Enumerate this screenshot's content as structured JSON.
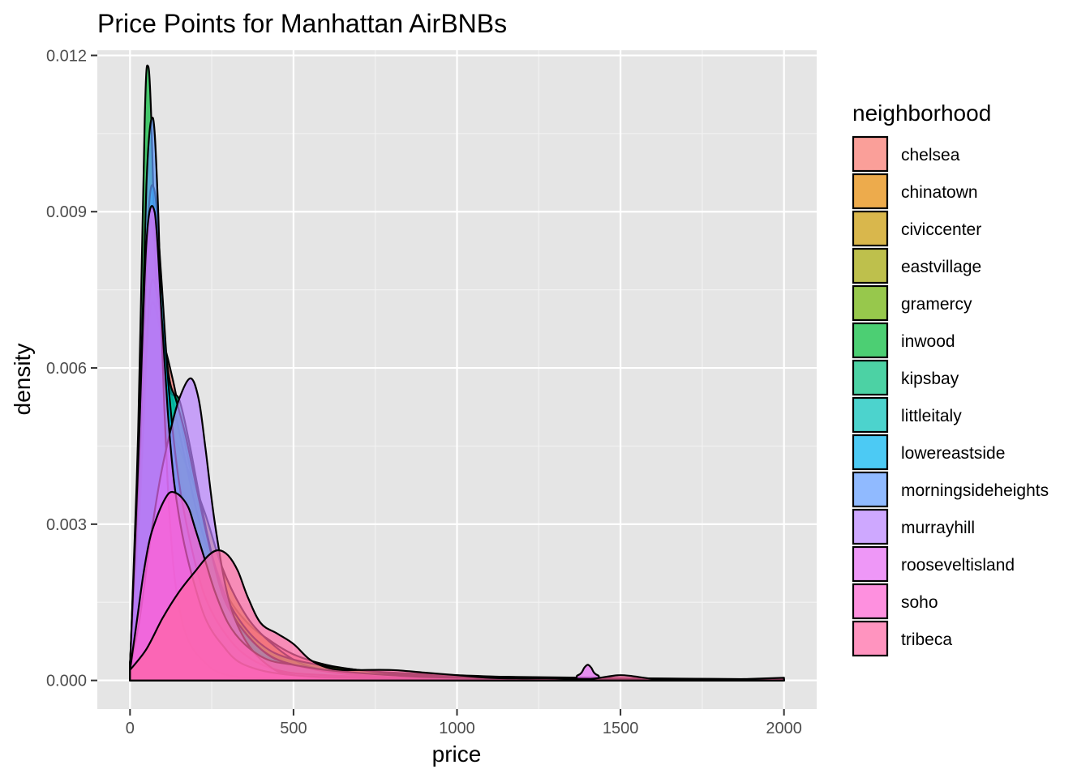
{
  "chart_data": {
    "type": "area",
    "subtype": "density",
    "title": "Price Points for Manhattan AirBNBs",
    "xlabel": "price",
    "ylabel": "density",
    "xlim": [
      -100,
      2100
    ],
    "ylim": [
      -0.00055,
      0.0121
    ],
    "x_ticks": [
      {
        "value": 0,
        "label": "0"
      },
      {
        "value": 500,
        "label": "500"
      },
      {
        "value": 1000,
        "label": "1000"
      },
      {
        "value": 1500,
        "label": "1500"
      },
      {
        "value": 2000,
        "label": "2000"
      }
    ],
    "y_ticks": [
      {
        "value": 0,
        "label": "0.000"
      },
      {
        "value": 0.003,
        "label": "0.003"
      },
      {
        "value": 0.006,
        "label": "0.006"
      },
      {
        "value": 0.009,
        "label": "0.009"
      },
      {
        "value": 0.012,
        "label": "0.012"
      }
    ],
    "grid": true,
    "background": "#e5e5e5",
    "fill_opacity": 0.7,
    "legend": {
      "title": "neighborhood",
      "position": "right"
    },
    "series": [
      {
        "name": "chelsea",
        "color": "#F8766D",
        "x": [
          0,
          30,
          60,
          90,
          130,
          170,
          210,
          250,
          300,
          360,
          420,
          500,
          600,
          700,
          800,
          1000,
          1200,
          1500,
          2000
        ],
        "y": [
          0.0002,
          0.0025,
          0.0058,
          0.0066,
          0.0058,
          0.0045,
          0.0033,
          0.0024,
          0.0016,
          0.0011,
          0.0008,
          0.0005,
          0.0003,
          0.0002,
          0.00015,
          0.0001,
          6e-05,
          4e-05,
          2e-05
        ]
      },
      {
        "name": "chinatown",
        "color": "#E58700",
        "x": [
          0,
          30,
          60,
          90,
          120,
          160,
          200,
          250,
          300,
          400,
          500,
          700,
          1000,
          2000
        ],
        "y": [
          0.0003,
          0.0035,
          0.0074,
          0.0068,
          0.0052,
          0.0038,
          0.0027,
          0.0018,
          0.0012,
          0.0005,
          0.0003,
          0.0001,
          5e-05,
          1e-05
        ]
      },
      {
        "name": "civiccenter",
        "color": "#C99800",
        "x": [
          0,
          40,
          80,
          130,
          180,
          230,
          280,
          340,
          400,
          500,
          600,
          800,
          1000,
          2000
        ],
        "y": [
          0.0002,
          0.0015,
          0.0038,
          0.0046,
          0.004,
          0.0032,
          0.0022,
          0.0014,
          0.0009,
          0.0004,
          0.0002,
          0.0001,
          5e-05,
          1e-05
        ]
      },
      {
        "name": "eastvillage",
        "color": "#A3A500",
        "x": [
          0,
          30,
          55,
          80,
          110,
          150,
          200,
          250,
          300,
          400,
          500,
          700,
          1000,
          2000
        ],
        "y": [
          0.0003,
          0.004,
          0.0086,
          0.008,
          0.0058,
          0.0039,
          0.0026,
          0.0017,
          0.0011,
          0.0005,
          0.0003,
          0.0001,
          4e-05,
          1e-05
        ]
      },
      {
        "name": "gramercy",
        "color": "#6BB100",
        "x": [
          0,
          30,
          60,
          90,
          130,
          170,
          210,
          260,
          320,
          400,
          500,
          700,
          1000,
          2000
        ],
        "y": [
          0.0002,
          0.0028,
          0.0066,
          0.0068,
          0.0054,
          0.0042,
          0.0031,
          0.0021,
          0.0013,
          0.0007,
          0.0004,
          0.0002,
          8e-05,
          2e-05
        ]
      },
      {
        "name": "inwood",
        "color": "#00BA38",
        "x": [
          0,
          25,
          45,
          55,
          65,
          80,
          100,
          130,
          160,
          200,
          250,
          300,
          400,
          600,
          1000,
          2000
        ],
        "y": [
          0.0002,
          0.0048,
          0.0108,
          0.0118,
          0.0108,
          0.0075,
          0.004,
          0.002,
          0.0011,
          0.0005,
          0.0002,
          0.0001,
          4e-05,
          1e-05,
          0.0,
          0.0
        ]
      },
      {
        "name": "kipsbay",
        "color": "#00BF7D",
        "x": [
          0,
          30,
          60,
          90,
          120,
          150,
          180,
          220,
          260,
          320,
          400,
          500,
          700,
          1000,
          2000
        ],
        "y": [
          0.0003,
          0.0032,
          0.007,
          0.0068,
          0.0056,
          0.0054,
          0.0046,
          0.0033,
          0.0022,
          0.0012,
          0.0006,
          0.0003,
          0.0001,
          4e-05,
          1e-05
        ]
      },
      {
        "name": "littleitaly",
        "color": "#00C0B8",
        "x": [
          0,
          30,
          60,
          90,
          120,
          140,
          170,
          210,
          250,
          300,
          400,
          500,
          700,
          1000,
          2000
        ],
        "y": [
          0.0003,
          0.0034,
          0.0074,
          0.0072,
          0.0058,
          0.0054,
          0.0047,
          0.0035,
          0.0024,
          0.0014,
          0.0006,
          0.0003,
          0.0001,
          4e-05,
          1e-05
        ]
      },
      {
        "name": "lowereastside",
        "color": "#00B4EF",
        "x": [
          0,
          30,
          55,
          75,
          95,
          120,
          150,
          190,
          230,
          280,
          350,
          450,
          600,
          1000,
          2000
        ],
        "y": [
          0.0003,
          0.0042,
          0.0088,
          0.0094,
          0.0078,
          0.0055,
          0.0038,
          0.0025,
          0.0016,
          0.001,
          0.0005,
          0.0002,
          0.0001,
          3e-05,
          1e-05
        ]
      },
      {
        "name": "morningsideheights",
        "color": "#619CFF",
        "x": [
          0,
          25,
          50,
          70,
          85,
          95,
          105,
          115,
          125,
          140,
          170,
          220,
          300,
          500,
          1000,
          2000
        ],
        "y": [
          0.0003,
          0.004,
          0.0095,
          0.0108,
          0.0092,
          0.007,
          0.0052,
          0.0038,
          0.0028,
          0.0018,
          0.0009,
          0.0004,
          0.0001,
          3e-05,
          0.0,
          0.0
        ]
      },
      {
        "name": "murrayhill",
        "color": "#B983FF",
        "x": [
          0,
          30,
          60,
          90,
          120,
          150,
          185,
          210,
          230,
          260,
          300,
          350,
          420,
          500,
          700,
          1000,
          2000
        ],
        "y": [
          0.0002,
          0.0012,
          0.0026,
          0.0038,
          0.0047,
          0.0054,
          0.0058,
          0.0054,
          0.0045,
          0.003,
          0.0016,
          0.0008,
          0.0003,
          0.0001,
          3e-05,
          1e-05,
          0.0
        ]
      },
      {
        "name": "rooseveltisland",
        "color": "#E76BF3",
        "x": [
          0,
          25,
          50,
          75,
          95,
          115,
          135,
          160,
          190,
          230,
          280,
          350,
          500,
          800,
          1300,
          1370,
          1390,
          1400,
          1410,
          1430,
          1500,
          2000
        ],
        "y": [
          0.0003,
          0.0042,
          0.0084,
          0.009,
          0.0072,
          0.0052,
          0.0038,
          0.0028,
          0.002,
          0.0012,
          0.0007,
          0.0003,
          0.0001,
          4e-05,
          2e-05,
          0.0001,
          0.00025,
          0.0003,
          0.00025,
          0.0001,
          2e-05,
          0.0
        ]
      },
      {
        "name": "soho",
        "color": "#FD61D1",
        "x": [
          0,
          20,
          40,
          60,
          80,
          100,
          120,
          140,
          160,
          180,
          200,
          230,
          260,
          300,
          350,
          420,
          500,
          600,
          800,
          1000,
          1500,
          2000
        ],
        "y": [
          0.0002,
          0.0011,
          0.002,
          0.0027,
          0.0031,
          0.0034,
          0.0036,
          0.0036,
          0.0035,
          0.0033,
          0.0029,
          0.0023,
          0.0017,
          0.0011,
          0.0007,
          0.0004,
          0.0003,
          0.0002,
          0.0001,
          5e-05,
          2e-05,
          1e-05
        ]
      },
      {
        "name": "tribeca",
        "color": "#FF67A4",
        "x": [
          0,
          50,
          100,
          150,
          200,
          240,
          270,
          300,
          330,
          360,
          400,
          450,
          500,
          550,
          600,
          650,
          700,
          800,
          900,
          1000,
          1100,
          1200,
          1300,
          1400,
          1500,
          1600,
          1700,
          1800,
          1900,
          2000
        ],
        "y": [
          0.0002,
          0.0006,
          0.0012,
          0.0017,
          0.0021,
          0.0024,
          0.0025,
          0.0024,
          0.0021,
          0.0016,
          0.0011,
          0.0009,
          0.0007,
          0.0004,
          0.00025,
          0.0002,
          0.0002,
          0.0002,
          0.00015,
          0.0001,
          5e-05,
          4e-05,
          4e-05,
          2e-05,
          0.0001,
          3e-05,
          1e-05,
          1e-05,
          3e-05,
          5e-05
        ]
      }
    ]
  }
}
